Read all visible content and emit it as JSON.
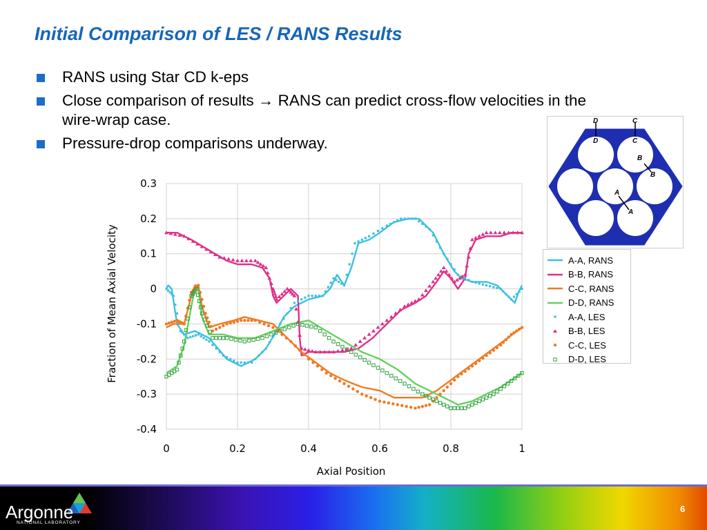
{
  "slide": {
    "title": "Initial Comparison of LES / RANS Results",
    "bullets": [
      {
        "text": "RANS using Star CD k-eps"
      },
      {
        "text_before": "Close comparison of results ",
        "arrow": "→",
        "text_after": " RANS can predict cross-flow velocities in the wire-wrap case."
      },
      {
        "text": "Pressure-drop comparisons underway."
      }
    ],
    "page_number": "6"
  },
  "footer": {
    "logo_text": "Argonne",
    "logo_subtext": "NATIONAL LABORATORY"
  },
  "inset": {
    "labels": [
      "D",
      "C",
      "D",
      "C",
      "B",
      "B",
      "A",
      "A"
    ]
  },
  "chart_data": {
    "type": "line",
    "xlabel": "Axial Position",
    "ylabel": "Fraction of Mean Axial Velocity",
    "xlim": [
      0,
      1
    ],
    "ylim": [
      -0.4,
      0.3
    ],
    "x_ticks": [
      "0",
      "0.2",
      "0.4",
      "0.6",
      "0.8",
      "1"
    ],
    "y_ticks": [
      "0.3",
      "0.2",
      "0.1",
      "0",
      "-0.1",
      "-0.2",
      "-0.3",
      "-0.4"
    ],
    "grid": true,
    "legend_position": "right",
    "series": [
      {
        "name": "A-A, RANS",
        "color": "#3cc0e0",
        "style": "line",
        "points": [
          [
            0,
            0.0
          ],
          [
            0.005,
            0.01
          ],
          [
            0.015,
            0.0
          ],
          [
            0.03,
            -0.1
          ],
          [
            0.05,
            -0.13
          ],
          [
            0.08,
            -0.12
          ],
          [
            0.12,
            -0.14
          ],
          [
            0.17,
            -0.2
          ],
          [
            0.21,
            -0.22
          ],
          [
            0.25,
            -0.2
          ],
          [
            0.28,
            -0.17
          ],
          [
            0.31,
            -0.12
          ],
          [
            0.33,
            -0.08
          ],
          [
            0.36,
            -0.05
          ],
          [
            0.4,
            -0.03
          ],
          [
            0.44,
            -0.02
          ],
          [
            0.46,
            0.0
          ],
          [
            0.48,
            0.04
          ],
          [
            0.5,
            0.01
          ],
          [
            0.52,
            0.06
          ],
          [
            0.54,
            0.13
          ],
          [
            0.57,
            0.14
          ],
          [
            0.6,
            0.16
          ],
          [
            0.64,
            0.19
          ],
          [
            0.68,
            0.2
          ],
          [
            0.71,
            0.2
          ],
          [
            0.75,
            0.16
          ],
          [
            0.78,
            0.1
          ],
          [
            0.81,
            0.05
          ],
          [
            0.83,
            0.03
          ],
          [
            0.86,
            0.02
          ],
          [
            0.9,
            0.02
          ],
          [
            0.93,
            0.01
          ],
          [
            0.96,
            -0.02
          ],
          [
            0.98,
            -0.04
          ],
          [
            0.99,
            -0.01
          ],
          [
            1.0,
            0.01
          ]
        ]
      },
      {
        "name": "B-B, RANS",
        "color": "#e0308a",
        "style": "line",
        "points": [
          [
            0,
            0.16
          ],
          [
            0.03,
            0.16
          ],
          [
            0.07,
            0.14
          ],
          [
            0.12,
            0.11
          ],
          [
            0.17,
            0.08
          ],
          [
            0.2,
            0.07
          ],
          [
            0.24,
            0.07
          ],
          [
            0.27,
            0.06
          ],
          [
            0.29,
            0.03
          ],
          [
            0.3,
            -0.02
          ],
          [
            0.31,
            -0.04
          ],
          [
            0.33,
            -0.02
          ],
          [
            0.35,
            0.0
          ],
          [
            0.36,
            -0.01
          ],
          [
            0.37,
            -0.02
          ],
          [
            0.375,
            -0.14
          ],
          [
            0.38,
            -0.19
          ],
          [
            0.4,
            -0.18
          ],
          [
            0.45,
            -0.18
          ],
          [
            0.5,
            -0.18
          ],
          [
            0.54,
            -0.17
          ],
          [
            0.58,
            -0.14
          ],
          [
            0.62,
            -0.1
          ],
          [
            0.66,
            -0.06
          ],
          [
            0.7,
            -0.04
          ],
          [
            0.73,
            -0.02
          ],
          [
            0.76,
            0.02
          ],
          [
            0.78,
            0.05
          ],
          [
            0.8,
            0.03
          ],
          [
            0.82,
            0.0
          ],
          [
            0.84,
            0.03
          ],
          [
            0.85,
            0.1
          ],
          [
            0.87,
            0.14
          ],
          [
            0.9,
            0.15
          ],
          [
            0.94,
            0.15
          ],
          [
            0.97,
            0.16
          ],
          [
            1.0,
            0.16
          ]
        ]
      },
      {
        "name": "C-C, RANS",
        "color": "#f07a20",
        "style": "line",
        "points": [
          [
            0,
            -0.11
          ],
          [
            0.02,
            -0.1
          ],
          [
            0.05,
            -0.1
          ],
          [
            0.07,
            -0.02
          ],
          [
            0.08,
            0.01
          ],
          [
            0.09,
            0.01
          ],
          [
            0.1,
            -0.05
          ],
          [
            0.12,
            -0.11
          ],
          [
            0.15,
            -0.1
          ],
          [
            0.19,
            -0.09
          ],
          [
            0.22,
            -0.08
          ],
          [
            0.26,
            -0.09
          ],
          [
            0.3,
            -0.1
          ],
          [
            0.34,
            -0.14
          ],
          [
            0.38,
            -0.18
          ],
          [
            0.42,
            -0.21
          ],
          [
            0.46,
            -0.24
          ],
          [
            0.5,
            -0.26
          ],
          [
            0.55,
            -0.28
          ],
          [
            0.6,
            -0.29
          ],
          [
            0.64,
            -0.31
          ],
          [
            0.68,
            -0.31
          ],
          [
            0.72,
            -0.31
          ],
          [
            0.76,
            -0.29
          ],
          [
            0.8,
            -0.26
          ],
          [
            0.84,
            -0.23
          ],
          [
            0.88,
            -0.2
          ],
          [
            0.92,
            -0.17
          ],
          [
            0.96,
            -0.14
          ],
          [
            1.0,
            -0.11
          ]
        ]
      },
      {
        "name": "D-D, RANS",
        "color": "#66d060",
        "style": "line",
        "points": [
          [
            0,
            -0.24
          ],
          [
            0.03,
            -0.22
          ],
          [
            0.05,
            -0.16
          ],
          [
            0.07,
            -0.05
          ],
          [
            0.08,
            0.0
          ],
          [
            0.09,
            0.0
          ],
          [
            0.1,
            -0.08
          ],
          [
            0.12,
            -0.13
          ],
          [
            0.16,
            -0.13
          ],
          [
            0.2,
            -0.14
          ],
          [
            0.25,
            -0.14
          ],
          [
            0.3,
            -0.12
          ],
          [
            0.35,
            -0.1
          ],
          [
            0.4,
            -0.09
          ],
          [
            0.45,
            -0.12
          ],
          [
            0.5,
            -0.15
          ],
          [
            0.55,
            -0.18
          ],
          [
            0.6,
            -0.2
          ],
          [
            0.65,
            -0.23
          ],
          [
            0.7,
            -0.27
          ],
          [
            0.74,
            -0.29
          ],
          [
            0.78,
            -0.31
          ],
          [
            0.82,
            -0.33
          ],
          [
            0.86,
            -0.32
          ],
          [
            0.9,
            -0.3
          ],
          [
            0.94,
            -0.28
          ],
          [
            0.97,
            -0.26
          ],
          [
            1.0,
            -0.24
          ]
        ]
      },
      {
        "name": "A-A, LES",
        "color": "#3cc0e0",
        "style": "marker",
        "marker": "square-dot",
        "points": [
          [
            0,
            0.0
          ],
          [
            0.02,
            -0.02
          ],
          [
            0.04,
            -0.12
          ],
          [
            0.06,
            -0.14
          ],
          [
            0.09,
            -0.13
          ],
          [
            0.12,
            -0.15
          ],
          [
            0.16,
            -0.19
          ],
          [
            0.2,
            -0.21
          ],
          [
            0.24,
            -0.21
          ],
          [
            0.28,
            -0.17
          ],
          [
            0.32,
            -0.1
          ],
          [
            0.36,
            -0.04
          ],
          [
            0.4,
            -0.02
          ],
          [
            0.44,
            -0.02
          ],
          [
            0.47,
            0.03
          ],
          [
            0.5,
            0.01
          ],
          [
            0.53,
            0.13
          ],
          [
            0.57,
            0.15
          ],
          [
            0.62,
            0.18
          ],
          [
            0.66,
            0.2
          ],
          [
            0.7,
            0.2
          ],
          [
            0.74,
            0.17
          ],
          [
            0.78,
            0.1
          ],
          [
            0.82,
            0.04
          ],
          [
            0.86,
            0.02
          ],
          [
            0.9,
            0.01
          ],
          [
            0.94,
            0.0
          ],
          [
            0.97,
            -0.03
          ],
          [
            1.0,
            0.0
          ]
        ]
      },
      {
        "name": "B-B, LES",
        "color": "#e0308a",
        "style": "marker",
        "marker": "triangle",
        "points": [
          [
            0,
            0.16
          ],
          [
            0.05,
            0.15
          ],
          [
            0.1,
            0.12
          ],
          [
            0.15,
            0.09
          ],
          [
            0.2,
            0.08
          ],
          [
            0.25,
            0.08
          ],
          [
            0.28,
            0.06
          ],
          [
            0.3,
            0.0
          ],
          [
            0.31,
            -0.03
          ],
          [
            0.34,
            0.0
          ],
          [
            0.36,
            -0.02
          ],
          [
            0.38,
            -0.17
          ],
          [
            0.42,
            -0.18
          ],
          [
            0.47,
            -0.18
          ],
          [
            0.52,
            -0.17
          ],
          [
            0.57,
            -0.13
          ],
          [
            0.62,
            -0.09
          ],
          [
            0.67,
            -0.05
          ],
          [
            0.71,
            -0.03
          ],
          [
            0.75,
            0.02
          ],
          [
            0.78,
            0.06
          ],
          [
            0.81,
            0.02
          ],
          [
            0.84,
            0.04
          ],
          [
            0.86,
            0.14
          ],
          [
            0.9,
            0.16
          ],
          [
            0.95,
            0.16
          ],
          [
            1.0,
            0.16
          ]
        ]
      },
      {
        "name": "C-C, LES",
        "color": "#f07a20",
        "style": "marker",
        "marker": "circle",
        "points": [
          [
            0,
            -0.1
          ],
          [
            0.03,
            -0.09
          ],
          [
            0.05,
            -0.1
          ],
          [
            0.07,
            -0.01
          ],
          [
            0.09,
            0.01
          ],
          [
            0.11,
            -0.07
          ],
          [
            0.13,
            -0.12
          ],
          [
            0.17,
            -0.1
          ],
          [
            0.21,
            -0.09
          ],
          [
            0.25,
            -0.09
          ],
          [
            0.3,
            -0.11
          ],
          [
            0.35,
            -0.15
          ],
          [
            0.4,
            -0.2
          ],
          [
            0.45,
            -0.24
          ],
          [
            0.5,
            -0.27
          ],
          [
            0.55,
            -0.3
          ],
          [
            0.6,
            -0.32
          ],
          [
            0.65,
            -0.33
          ],
          [
            0.7,
            -0.34
          ],
          [
            0.74,
            -0.33
          ],
          [
            0.78,
            -0.29
          ],
          [
            0.82,
            -0.25
          ],
          [
            0.86,
            -0.22
          ],
          [
            0.9,
            -0.19
          ],
          [
            0.94,
            -0.16
          ],
          [
            0.97,
            -0.13
          ],
          [
            1.0,
            -0.11
          ]
        ]
      },
      {
        "name": "D-D, LES",
        "color": "#30a040",
        "style": "marker",
        "marker": "square",
        "points": [
          [
            0,
            -0.25
          ],
          [
            0.03,
            -0.23
          ],
          [
            0.05,
            -0.15
          ],
          [
            0.07,
            -0.02
          ],
          [
            0.085,
            0.0
          ],
          [
            0.1,
            -0.07
          ],
          [
            0.13,
            -0.14
          ],
          [
            0.17,
            -0.14
          ],
          [
            0.22,
            -0.15
          ],
          [
            0.27,
            -0.14
          ],
          [
            0.32,
            -0.12
          ],
          [
            0.37,
            -0.1
          ],
          [
            0.42,
            -0.11
          ],
          [
            0.47,
            -0.15
          ],
          [
            0.52,
            -0.18
          ],
          [
            0.57,
            -0.21
          ],
          [
            0.62,
            -0.24
          ],
          [
            0.67,
            -0.27
          ],
          [
            0.72,
            -0.3
          ],
          [
            0.76,
            -0.32
          ],
          [
            0.8,
            -0.34
          ],
          [
            0.84,
            -0.34
          ],
          [
            0.88,
            -0.32
          ],
          [
            0.92,
            -0.3
          ],
          [
            0.96,
            -0.27
          ],
          [
            1.0,
            -0.24
          ]
        ]
      }
    ]
  }
}
